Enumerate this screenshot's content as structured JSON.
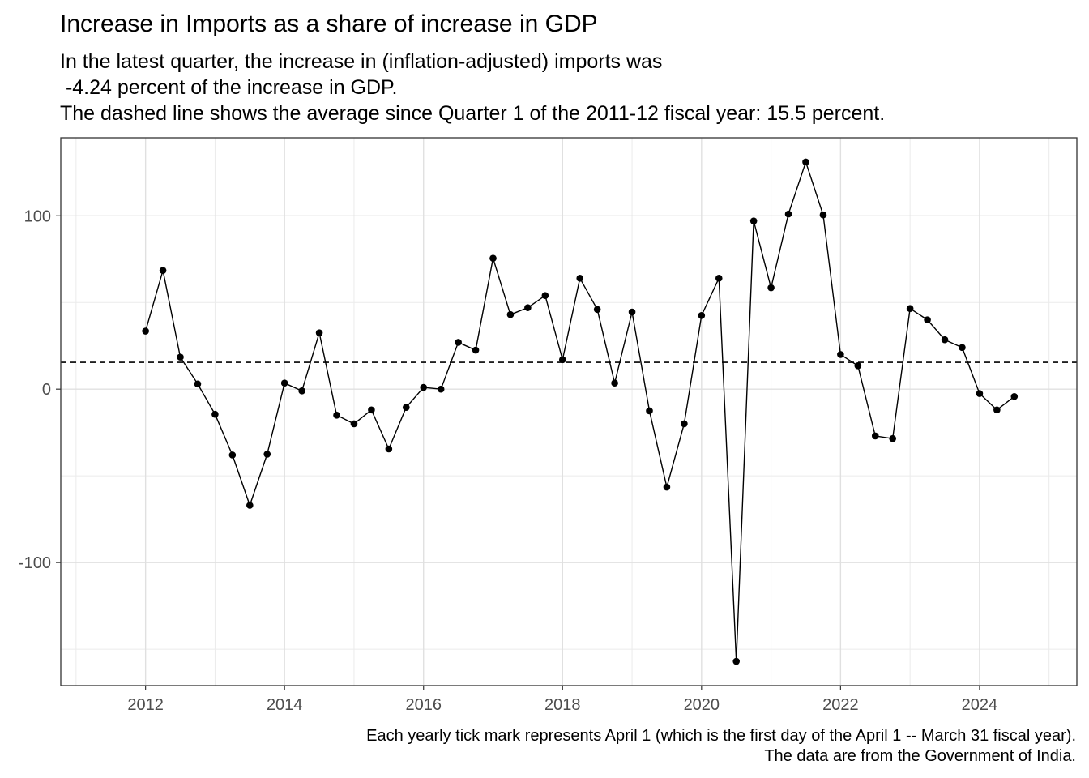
{
  "title": "Increase in Imports as a share of increase in GDP",
  "subtitle": {
    "line1": "In the latest quarter, the increase in (inflation-adjusted) imports was",
    "line2": " -4.24 percent of the increase in GDP.",
    "line3": "The dashed line shows the average since Quarter 1 of the 2011-12 fiscal year: 15.5 percent."
  },
  "caption": {
    "line1": "Each yearly tick mark represents April 1 (which is the first day of the April 1 -- March 31 fiscal year).",
    "line2": "The data are from the Government of India."
  },
  "chart_data": {
    "type": "line",
    "xlabel": "",
    "ylabel": "",
    "x_ticks": [
      "2012",
      "2014",
      "2016",
      "2018",
      "2020",
      "2022",
      "2024"
    ],
    "y_ticks": [
      "-100",
      "0",
      "100"
    ],
    "xlim": [
      2010.78,
      2025.4
    ],
    "ylim": [
      -171,
      145
    ],
    "grid": true,
    "average_line": {
      "value": 15.5,
      "style": "dashed"
    },
    "series": [
      {
        "points": [
          {
            "x": 2012.0,
            "y": 33.5
          },
          {
            "x": 2012.25,
            "y": 68.5
          },
          {
            "x": 2012.5,
            "y": 18.5
          },
          {
            "x": 2012.75,
            "y": 3.0
          },
          {
            "x": 2013.0,
            "y": -14.5
          },
          {
            "x": 2013.25,
            "y": -38.0
          },
          {
            "x": 2013.5,
            "y": -67.0
          },
          {
            "x": 2013.75,
            "y": -37.5
          },
          {
            "x": 2014.0,
            "y": 3.5
          },
          {
            "x": 2014.25,
            "y": -1.0
          },
          {
            "x": 2014.5,
            "y": 32.5
          },
          {
            "x": 2014.75,
            "y": -15.0
          },
          {
            "x": 2015.0,
            "y": -20.0
          },
          {
            "x": 2015.25,
            "y": -12.0
          },
          {
            "x": 2015.5,
            "y": -34.5
          },
          {
            "x": 2015.75,
            "y": -10.5
          },
          {
            "x": 2016.0,
            "y": 1.0
          },
          {
            "x": 2016.25,
            "y": 0.0
          },
          {
            "x": 2016.5,
            "y": 27.0
          },
          {
            "x": 2016.75,
            "y": 22.5
          },
          {
            "x": 2017.0,
            "y": 75.5
          },
          {
            "x": 2017.25,
            "y": 43.0
          },
          {
            "x": 2017.5,
            "y": 47.0
          },
          {
            "x": 2017.75,
            "y": 54.0
          },
          {
            "x": 2018.0,
            "y": 17.0
          },
          {
            "x": 2018.25,
            "y": 64.0
          },
          {
            "x": 2018.5,
            "y": 46.0
          },
          {
            "x": 2018.75,
            "y": 3.5
          },
          {
            "x": 2019.0,
            "y": 44.5
          },
          {
            "x": 2019.25,
            "y": -12.5
          },
          {
            "x": 2019.5,
            "y": -56.5
          },
          {
            "x": 2019.75,
            "y": -20.0
          },
          {
            "x": 2020.0,
            "y": 42.5
          },
          {
            "x": 2020.25,
            "y": 64.0
          },
          {
            "x": 2020.5,
            "y": -157.0
          },
          {
            "x": 2020.75,
            "y": 97.0
          },
          {
            "x": 2021.0,
            "y": 58.5
          },
          {
            "x": 2021.25,
            "y": 101.0
          },
          {
            "x": 2021.5,
            "y": 131.0
          },
          {
            "x": 2021.75,
            "y": 100.5
          },
          {
            "x": 2022.0,
            "y": 20.0
          },
          {
            "x": 2022.25,
            "y": 13.5
          },
          {
            "x": 2022.5,
            "y": -27.0
          },
          {
            "x": 2022.75,
            "y": -28.5
          },
          {
            "x": 2023.0,
            "y": 46.5
          },
          {
            "x": 2023.25,
            "y": 40.0
          },
          {
            "x": 2023.5,
            "y": 28.5
          },
          {
            "x": 2023.75,
            "y": 24.0
          },
          {
            "x": 2024.0,
            "y": -2.5
          },
          {
            "x": 2024.25,
            "y": -12.0
          },
          {
            "x": 2024.5,
            "y": -4.24
          }
        ]
      }
    ]
  }
}
